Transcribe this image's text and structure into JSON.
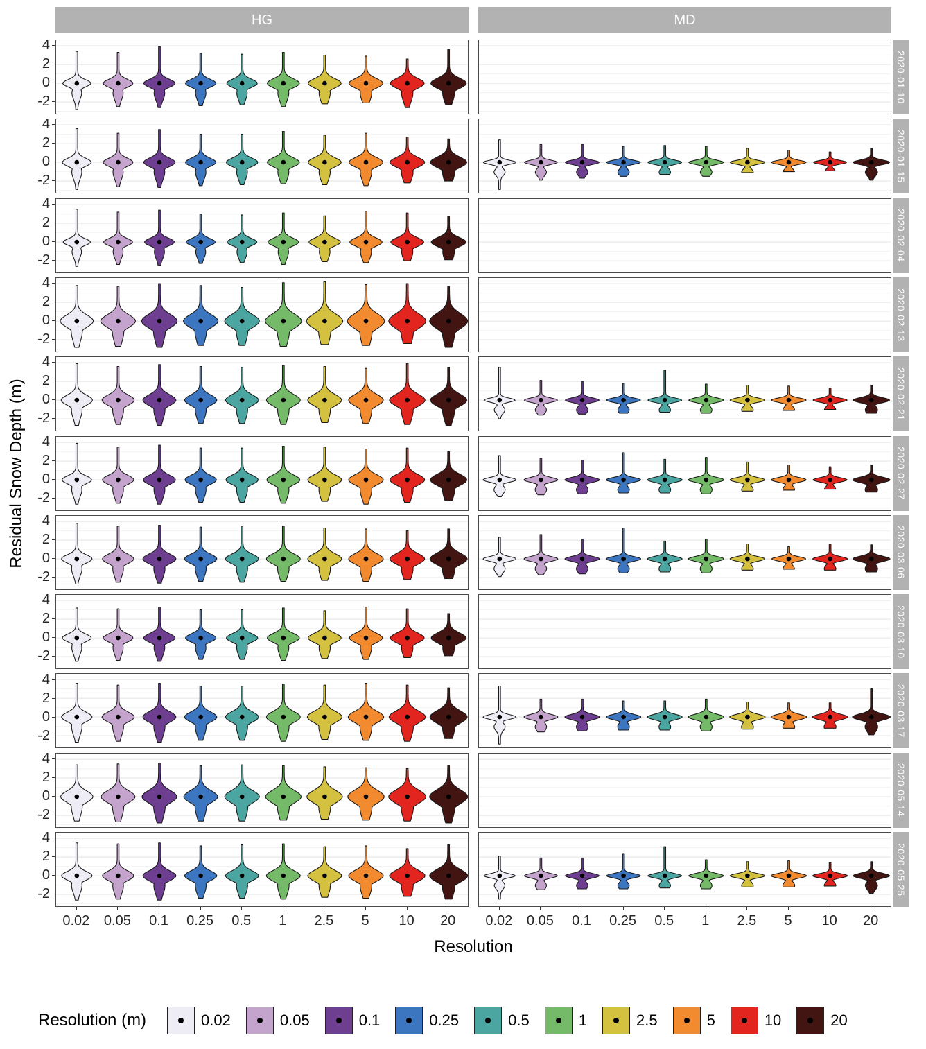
{
  "figure": {
    "ylabel": "Residual Snow Depth (m)",
    "xlabel": "Resolution"
  },
  "legend": {
    "title": "Resolution (m)",
    "entries": [
      {
        "label": "0.02",
        "color": "#eeedf6"
      },
      {
        "label": "0.05",
        "color": "#c4a3cd"
      },
      {
        "label": "0.1",
        "color": "#6e3f91"
      },
      {
        "label": "0.25",
        "color": "#3c76c0"
      },
      {
        "label": "0.5",
        "color": "#4ba5a0"
      },
      {
        "label": "1",
        "color": "#74ba68"
      },
      {
        "label": "2.5",
        "color": "#d4c13f"
      },
      {
        "label": "5",
        "color": "#f28a2f"
      },
      {
        "label": "10",
        "color": "#e2261f"
      },
      {
        "label": "20",
        "color": "#421512"
      }
    ]
  },
  "chart_data": {
    "type": "violin",
    "title": "",
    "xlabel": "Resolution",
    "ylabel": "Residual Snow Depth (m)",
    "x_categories": [
      "0.02",
      "0.05",
      "0.1",
      "0.25",
      "0.5",
      "1",
      "2.5",
      "5",
      "10",
      "20"
    ],
    "y_ticks": [
      4,
      2,
      0,
      -2
    ],
    "ylim": [
      -3.4,
      4.6
    ],
    "grid": "horizontal-only",
    "legend_position": "bottom",
    "facet_cols": [
      "HG",
      "MD"
    ],
    "facet_rows": [
      "2020-01-10",
      "2020-01-15",
      "2020-02-04",
      "2020-02-13",
      "2020-02-21",
      "2020-02-27",
      "2020-03-06",
      "2020-03-10",
      "2020-03-17",
      "2020-05-14",
      "2020-05-25"
    ],
    "panels": [
      {
        "site": "HG",
        "date": "2020-01-10",
        "med": 0,
        "top": [
          3.4,
          3.3,
          3.9,
          3.2,
          3.1,
          3.3,
          3.0,
          2.9,
          2.6,
          3.6
        ],
        "bot": [
          -2.8,
          -2.5,
          -2.6,
          -2.4,
          -2.3,
          -2.5,
          -2.2,
          -2.1,
          -2.6,
          -2.3
        ],
        "bh": [
          0.55,
          0.6,
          0.62,
          0.6,
          0.62,
          0.68,
          0.7,
          0.72,
          0.75,
          0.78
        ],
        "bw": [
          0.34,
          0.36,
          0.38,
          0.37,
          0.37,
          0.39,
          0.4,
          0.41,
          0.41,
          0.43
        ]
      },
      {
        "site": "HG",
        "date": "2020-01-15",
        "med": 0,
        "top": [
          3.6,
          3.1,
          3.5,
          3.0,
          3.0,
          3.3,
          2.9,
          3.1,
          2.7,
          2.5
        ],
        "bot": [
          -2.9,
          -2.6,
          -2.7,
          -2.5,
          -2.4,
          -2.3,
          -2.4,
          -2.5,
          -2.2,
          -2.0
        ],
        "bh": [
          0.6,
          0.62,
          0.66,
          0.62,
          0.64,
          0.68,
          0.7,
          0.72,
          0.74,
          0.8
        ],
        "bw": [
          0.35,
          0.36,
          0.38,
          0.37,
          0.38,
          0.39,
          0.4,
          0.41,
          0.42,
          0.44
        ]
      },
      {
        "site": "HG",
        "date": "2020-02-04",
        "med": 0,
        "top": [
          3.5,
          3.2,
          3.4,
          3.0,
          2.9,
          3.1,
          2.8,
          3.3,
          3.1,
          2.7
        ],
        "bot": [
          -2.6,
          -2.4,
          -2.5,
          -2.3,
          -2.2,
          -2.4,
          -2.1,
          -2.2,
          -2.0,
          -1.9
        ],
        "bh": [
          0.5,
          0.55,
          0.58,
          0.55,
          0.56,
          0.6,
          0.62,
          0.64,
          0.66,
          0.7
        ],
        "bw": [
          0.33,
          0.35,
          0.36,
          0.35,
          0.36,
          0.37,
          0.38,
          0.39,
          0.4,
          0.42
        ]
      },
      {
        "site": "HG",
        "date": "2020-02-13",
        "med": 0,
        "top": [
          3.8,
          3.7,
          4.0,
          3.8,
          3.6,
          4.1,
          4.2,
          3.9,
          4.0,
          3.7
        ],
        "bot": [
          -2.8,
          -2.7,
          -2.8,
          -2.6,
          -2.6,
          -2.7,
          -2.5,
          -2.6,
          -2.4,
          -2.8
        ],
        "bh": [
          0.9,
          0.95,
          1.0,
          0.95,
          0.95,
          1.05,
          1.05,
          1.1,
          1.1,
          1.15
        ],
        "bw": [
          0.4,
          0.42,
          0.43,
          0.42,
          0.42,
          0.44,
          0.44,
          0.45,
          0.45,
          0.46
        ]
      },
      {
        "site": "HG",
        "date": "2020-02-21",
        "med": 0,
        "top": [
          3.9,
          3.6,
          3.8,
          3.6,
          3.5,
          3.7,
          3.6,
          3.4,
          3.9,
          3.5
        ],
        "bot": [
          -2.7,
          -2.6,
          -2.7,
          -2.5,
          -2.5,
          -2.6,
          -2.4,
          -2.5,
          -2.6,
          -2.7
        ],
        "bh": [
          0.75,
          0.78,
          0.82,
          0.78,
          0.8,
          0.85,
          0.85,
          0.88,
          0.9,
          0.92
        ],
        "bw": [
          0.38,
          0.39,
          0.4,
          0.39,
          0.4,
          0.41,
          0.41,
          0.42,
          0.43,
          0.44
        ]
      },
      {
        "site": "HG",
        "date": "2020-02-27",
        "med": 0,
        "top": [
          3.9,
          3.5,
          3.7,
          3.4,
          3.4,
          3.6,
          3.5,
          3.3,
          3.4,
          3.0
        ],
        "bot": [
          -2.6,
          -2.5,
          -2.6,
          -2.4,
          -2.4,
          -2.5,
          -2.3,
          -2.6,
          -2.4,
          -2.2
        ],
        "bh": [
          0.6,
          0.68,
          0.72,
          0.68,
          0.7,
          0.74,
          0.76,
          0.78,
          0.8,
          0.85
        ],
        "bw": [
          0.36,
          0.38,
          0.39,
          0.38,
          0.39,
          0.4,
          0.41,
          0.42,
          0.42,
          0.44
        ]
      },
      {
        "site": "HG",
        "date": "2020-03-06",
        "med": 0,
        "top": [
          3.8,
          3.5,
          3.6,
          3.4,
          3.5,
          3.5,
          3.3,
          3.2,
          3.0,
          3.2
        ],
        "bot": [
          -2.7,
          -2.5,
          -2.6,
          -2.4,
          -2.5,
          -2.4,
          -2.3,
          -2.4,
          -2.2,
          -2.1
        ],
        "bh": [
          0.62,
          0.7,
          0.74,
          0.7,
          0.72,
          0.76,
          0.78,
          0.8,
          0.8,
          0.88
        ],
        "bw": [
          0.37,
          0.38,
          0.4,
          0.39,
          0.4,
          0.41,
          0.41,
          0.42,
          0.42,
          0.45
        ]
      },
      {
        "site": "HG",
        "date": "2020-03-10",
        "med": 0,
        "top": [
          3.2,
          3.1,
          3.3,
          3.0,
          3.0,
          3.2,
          2.9,
          3.3,
          3.1,
          2.6
        ],
        "bot": [
          -2.5,
          -2.4,
          -2.5,
          -2.3,
          -2.3,
          -2.4,
          -2.2,
          -2.3,
          -2.1,
          -1.9
        ],
        "bh": [
          0.58,
          0.62,
          0.66,
          0.62,
          0.64,
          0.68,
          0.7,
          0.72,
          0.74,
          0.78
        ],
        "bw": [
          0.35,
          0.36,
          0.38,
          0.37,
          0.38,
          0.39,
          0.4,
          0.4,
          0.41,
          0.42
        ]
      },
      {
        "site": "HG",
        "date": "2020-03-17",
        "med": 0,
        "top": [
          3.6,
          3.4,
          3.6,
          3.3,
          3.3,
          3.5,
          3.4,
          3.6,
          3.4,
          3.1
        ],
        "bot": [
          -2.7,
          -2.6,
          -2.7,
          -2.5,
          -2.5,
          -2.6,
          -2.4,
          -2.5,
          -2.6,
          -2.3
        ],
        "bh": [
          0.7,
          0.75,
          0.8,
          0.75,
          0.78,
          0.82,
          0.84,
          0.86,
          0.9,
          0.95
        ],
        "bw": [
          0.37,
          0.39,
          0.4,
          0.39,
          0.4,
          0.41,
          0.42,
          0.43,
          0.44,
          0.45
        ]
      },
      {
        "site": "HG",
        "date": "2020-05-14",
        "med": 0,
        "top": [
          3.4,
          3.5,
          3.6,
          3.3,
          3.4,
          3.3,
          3.2,
          3.1,
          3.0,
          3.3
        ],
        "bot": [
          -2.6,
          -2.7,
          -2.8,
          -2.6,
          -2.6,
          -2.5,
          -2.4,
          -2.5,
          -2.6,
          -2.8
        ],
        "bh": [
          0.85,
          0.9,
          0.95,
          0.9,
          0.92,
          0.95,
          0.95,
          0.98,
          1.0,
          1.05
        ],
        "bw": [
          0.39,
          0.41,
          0.42,
          0.41,
          0.42,
          0.43,
          0.43,
          0.44,
          0.45,
          0.46
        ]
      },
      {
        "site": "HG",
        "date": "2020-05-25",
        "med": 0,
        "top": [
          3.5,
          3.4,
          3.5,
          3.2,
          3.3,
          3.4,
          3.1,
          3.2,
          2.9,
          3.3
        ],
        "bot": [
          -2.6,
          -2.5,
          -2.6,
          -2.4,
          -2.4,
          -2.5,
          -2.3,
          -2.4,
          -2.2,
          -2.5
        ],
        "bh": [
          0.65,
          0.72,
          0.76,
          0.72,
          0.74,
          0.78,
          0.8,
          0.82,
          0.84,
          0.95
        ],
        "bw": [
          0.37,
          0.38,
          0.4,
          0.39,
          0.4,
          0.41,
          0.41,
          0.42,
          0.43,
          0.46
        ]
      },
      {
        "site": "MD",
        "date": "2020-01-15",
        "med": 0,
        "top": [
          2.4,
          1.9,
          1.9,
          1.7,
          1.8,
          1.7,
          1.5,
          1.3,
          1.1,
          1.5
        ],
        "bot": [
          -2.9,
          -1.9,
          -1.7,
          -1.5,
          -1.3,
          -1.5,
          -1.1,
          -1.0,
          -0.9,
          -1.9
        ],
        "bh": [
          0.3,
          0.32,
          0.32,
          0.3,
          0.32,
          0.32,
          0.3,
          0.3,
          0.28,
          0.35
        ],
        "bw": [
          0.4,
          0.4,
          0.41,
          0.41,
          0.41,
          0.42,
          0.42,
          0.42,
          0.4,
          0.44
        ]
      },
      {
        "site": "MD",
        "date": "2020-02-21",
        "med": 0,
        "top": [
          3.5,
          2.1,
          2.0,
          1.8,
          3.2,
          1.7,
          1.6,
          1.5,
          1.3,
          1.6
        ],
        "bot": [
          -2.0,
          -1.6,
          -1.5,
          -1.4,
          -1.3,
          -1.4,
          -1.2,
          -1.1,
          -1.0,
          -1.4
        ],
        "bh": [
          0.3,
          0.32,
          0.34,
          0.32,
          0.32,
          0.34,
          0.32,
          0.32,
          0.3,
          0.38
        ],
        "bw": [
          0.38,
          0.4,
          0.41,
          0.41,
          0.41,
          0.42,
          0.42,
          0.42,
          0.41,
          0.44
        ]
      },
      {
        "site": "MD",
        "date": "2020-02-27",
        "med": 0,
        "top": [
          2.6,
          2.3,
          2.1,
          2.9,
          2.2,
          2.4,
          1.9,
          1.6,
          1.4,
          1.6
        ],
        "bot": [
          -1.8,
          -1.6,
          -1.5,
          -1.4,
          -1.4,
          -1.5,
          -1.2,
          -1.1,
          -1.0,
          -1.3
        ],
        "bh": [
          0.34,
          0.36,
          0.36,
          0.34,
          0.36,
          0.36,
          0.34,
          0.34,
          0.32,
          0.4
        ],
        "bw": [
          0.4,
          0.41,
          0.42,
          0.42,
          0.42,
          0.43,
          0.42,
          0.42,
          0.41,
          0.45
        ]
      },
      {
        "site": "MD",
        "date": "2020-03-06",
        "med": 0,
        "top": [
          2.3,
          2.6,
          2.1,
          3.3,
          1.9,
          2.1,
          1.6,
          1.3,
          1.6,
          1.5
        ],
        "bot": [
          -1.9,
          -1.7,
          -1.6,
          -1.5,
          -1.4,
          -1.5,
          -1.2,
          -1.1,
          -1.2,
          -1.4
        ],
        "bh": [
          0.34,
          0.36,
          0.36,
          0.34,
          0.36,
          0.36,
          0.34,
          0.32,
          0.34,
          0.4
        ],
        "bw": [
          0.4,
          0.41,
          0.42,
          0.42,
          0.42,
          0.43,
          0.42,
          0.41,
          0.42,
          0.45
        ]
      },
      {
        "site": "MD",
        "date": "2020-03-17",
        "med": 0,
        "top": [
          3.3,
          1.9,
          1.9,
          1.7,
          1.7,
          1.9,
          1.6,
          1.5,
          1.5,
          3.0
        ],
        "bot": [
          -2.9,
          -1.6,
          -1.5,
          -1.4,
          -1.4,
          -1.5,
          -1.3,
          -1.2,
          -1.2,
          -1.9
        ],
        "bh": [
          0.34,
          0.38,
          0.4,
          0.38,
          0.4,
          0.42,
          0.4,
          0.4,
          0.4,
          0.45
        ],
        "bw": [
          0.4,
          0.41,
          0.42,
          0.42,
          0.42,
          0.43,
          0.43,
          0.43,
          0.43,
          0.46
        ]
      },
      {
        "site": "MD",
        "date": "2020-05-25",
        "med": 0,
        "top": [
          2.1,
          1.9,
          1.9,
          2.3,
          3.1,
          1.7,
          1.5,
          1.6,
          1.4,
          1.5
        ],
        "bot": [
          -2.5,
          -1.5,
          -1.4,
          -1.4,
          -1.3,
          -1.4,
          -1.2,
          -1.2,
          -1.1,
          -1.9
        ],
        "bh": [
          0.3,
          0.34,
          0.34,
          0.32,
          0.32,
          0.34,
          0.32,
          0.34,
          0.32,
          0.38
        ],
        "bw": [
          0.38,
          0.4,
          0.41,
          0.41,
          0.41,
          0.42,
          0.42,
          0.43,
          0.42,
          0.44
        ]
      }
    ]
  }
}
